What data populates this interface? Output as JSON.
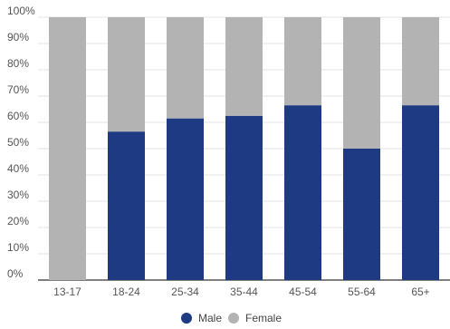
{
  "chart_data": {
    "type": "bar",
    "stacked": true,
    "percent_stacked": true,
    "categories": [
      "13-17",
      "18-24",
      "25-34",
      "35-44",
      "45-54",
      "55-64",
      "65+"
    ],
    "series": [
      {
        "name": "Male",
        "color": "#1d3a82",
        "values": [
          0,
          56.5,
          61.5,
          62.5,
          66.5,
          50,
          66.5
        ]
      },
      {
        "name": "Female",
        "color": "#b3b3b3",
        "values": [
          100,
          43.5,
          38.5,
          37.5,
          33.5,
          50,
          33.5
        ]
      }
    ],
    "ylim": [
      0,
      100
    ],
    "y_ticks": [
      "0%",
      "10%",
      "20%",
      "30%",
      "40%",
      "50%",
      "60%",
      "70%",
      "80%",
      "90%",
      "100%"
    ],
    "grid": true,
    "legend": "bottom-center",
    "xlabel": "",
    "ylabel": ""
  }
}
